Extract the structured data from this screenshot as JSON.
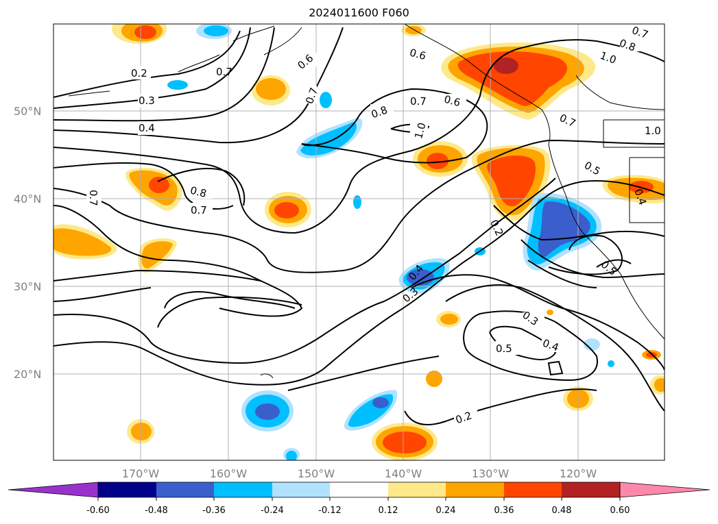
{
  "title": "2024011600 F060",
  "lat_labels": [
    "50°N",
    "40°N",
    "30°N",
    "20°N"
  ],
  "lon_labels": [
    "170°W",
    "160°W",
    "150°W",
    "140°W",
    "130°W",
    "120°W"
  ],
  "colorbar": {
    "ticks": [
      "-0.60",
      "-0.48",
      "-0.36",
      "-0.24",
      "-0.12",
      "0.12",
      "0.24",
      "0.36",
      "0.48",
      "0.60"
    ],
    "colors": [
      "#9932cc",
      "#00008b",
      "#3a5fcd",
      "#00bfff",
      "#b0e2ff",
      "#ffffff",
      "#fee98a",
      "#ffa500",
      "#ff4500",
      "#b22222",
      "#ff88aa"
    ]
  },
  "contour_labels": [
    "0.2",
    "0.3",
    "0.4",
    "0.7",
    "0.6",
    "0.7",
    "0.8",
    "1.0",
    "0.7",
    "0.6",
    "0.6",
    "0.7",
    "0.8",
    "1.0",
    "0.7",
    "1.0",
    "0.5",
    "0.4",
    "0.8",
    "0.7",
    "0.7",
    "0.2",
    "0.4",
    "0.3",
    "0.3",
    "0.5",
    "0.4",
    "0.5",
    "0.2"
  ]
}
